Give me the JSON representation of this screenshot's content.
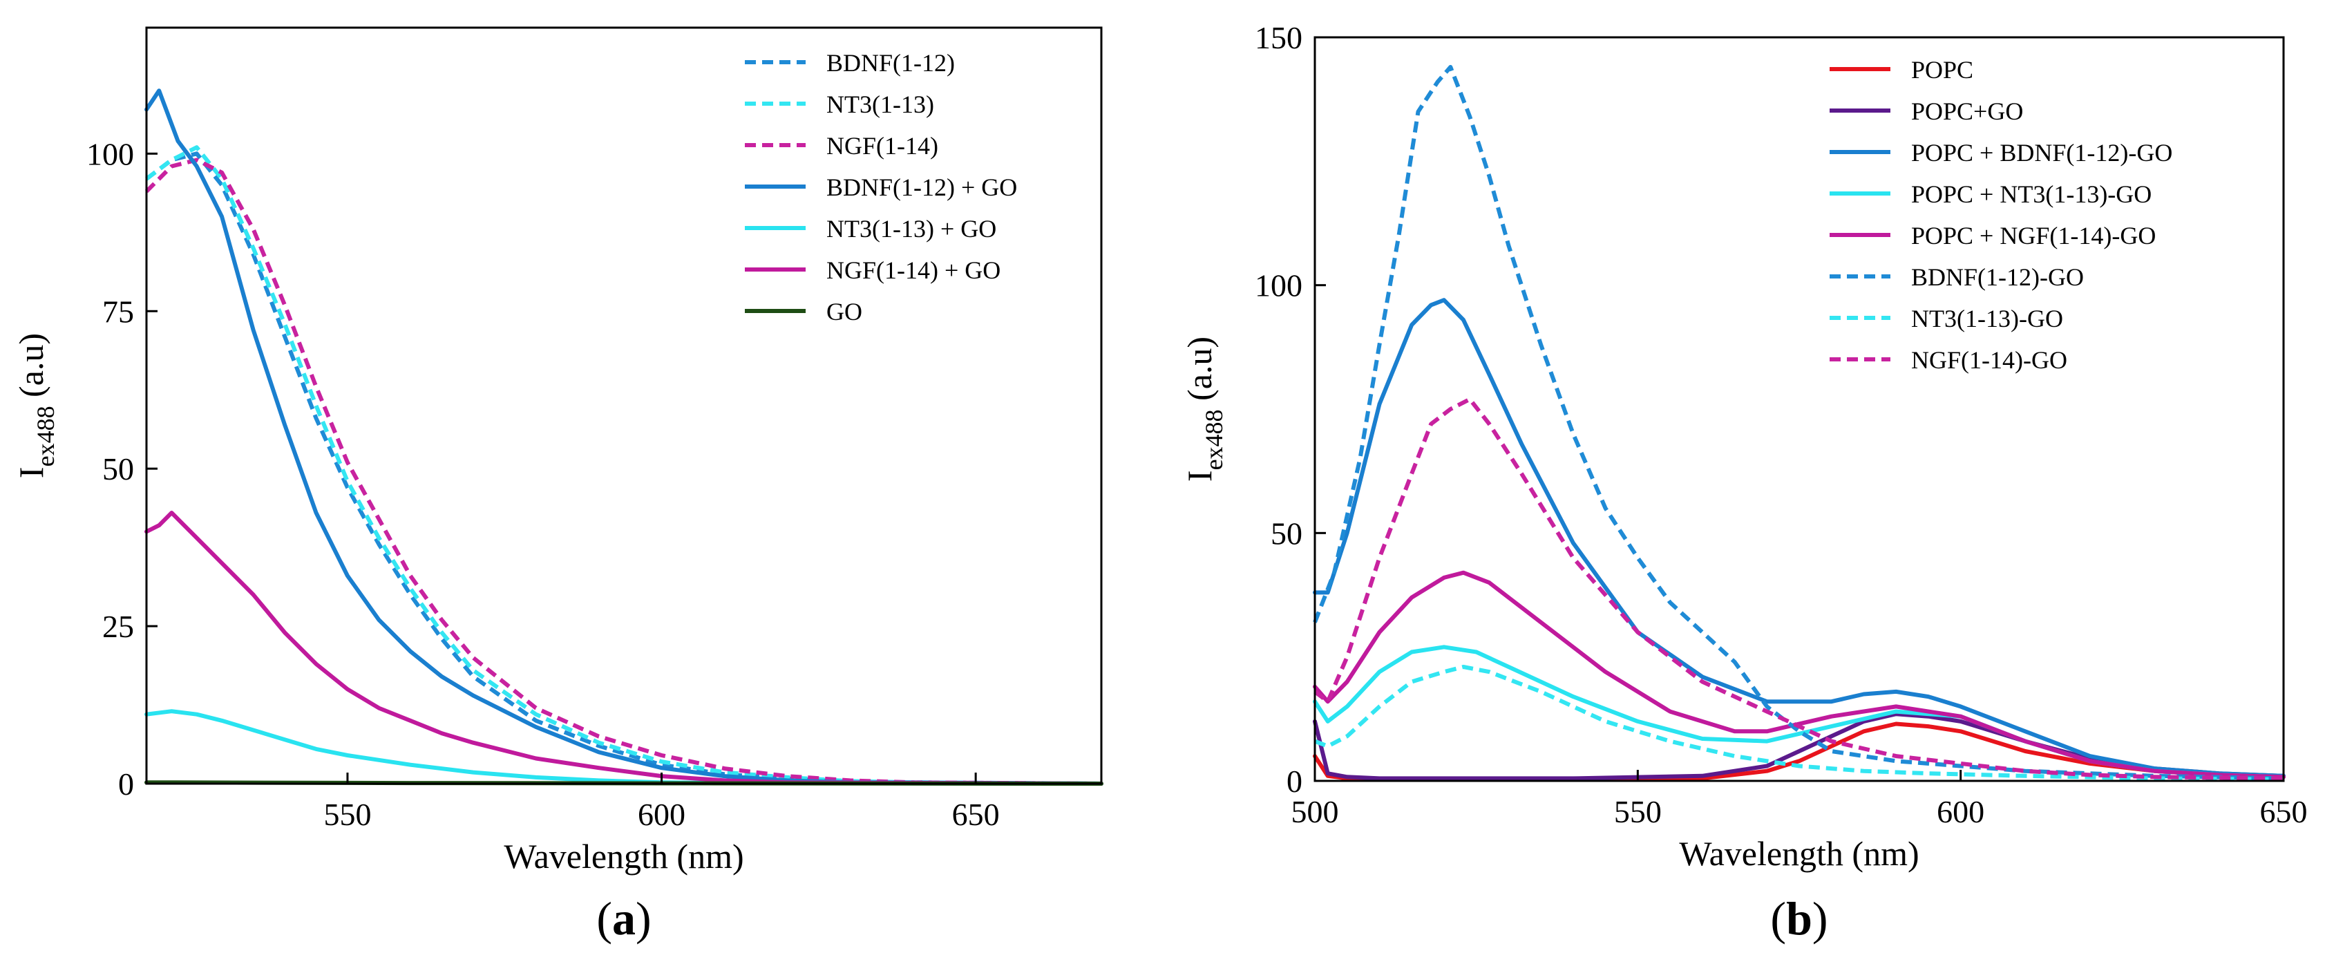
{
  "chart_data": [
    {
      "panel": "(a)",
      "panel_parts": [
        "(",
        "a",
        ")"
      ],
      "type": "line",
      "xlabel": "Wavelength (nm)",
      "ylabel": "I",
      "ylabel_sub": "ex488",
      "ylabel_unit": "(a.u)",
      "xlim": [
        518,
        670
      ],
      "ylim": [
        0,
        120
      ],
      "xticks": [
        550,
        600,
        650
      ],
      "yticks": [
        0,
        25,
        50,
        75,
        100
      ],
      "legend_position": "top-right",
      "series": [
        {
          "name": "BDNF(1-12)",
          "color": "#1f8bd6",
          "style": "dashed",
          "x": [
            518,
            522,
            526,
            530,
            535,
            540,
            545,
            550,
            555,
            560,
            565,
            570,
            580,
            590,
            600,
            610,
            620,
            630,
            640,
            670
          ],
          "y": [
            96,
            99,
            100,
            95,
            84,
            71,
            58,
            47,
            38,
            30,
            23,
            17,
            10,
            6,
            3,
            1.5,
            0.8,
            0.3,
            0.2,
            0
          ]
        },
        {
          "name": "NT3(1-13)",
          "color": "#33e6f2",
          "style": "dashed",
          "x": [
            518,
            522,
            526,
            530,
            535,
            540,
            545,
            550,
            555,
            560,
            565,
            570,
            580,
            590,
            600,
            610,
            620,
            630,
            640,
            670
          ],
          "y": [
            96,
            99,
            101,
            96,
            85,
            73,
            60,
            48,
            39,
            31,
            24,
            18,
            11,
            6.5,
            3.5,
            1.8,
            1,
            0.4,
            0.2,
            0
          ]
        },
        {
          "name": "NGF(1-14)",
          "color": "#c8229f",
          "style": "dashed",
          "x": [
            518,
            522,
            526,
            530,
            535,
            540,
            545,
            550,
            555,
            560,
            565,
            570,
            580,
            590,
            600,
            610,
            620,
            630,
            640,
            670
          ],
          "y": [
            94,
            98,
            99,
            97,
            88,
            76,
            63,
            51,
            42,
            33,
            26,
            20,
            12,
            7.5,
            4.5,
            2.4,
            1.2,
            0.5,
            0.2,
            0
          ]
        },
        {
          "name": "BDNF(1-12) + GO",
          "color": "#1a7fcf",
          "style": "solid",
          "x": [
            518,
            520,
            523,
            526,
            530,
            535,
            540,
            545,
            550,
            555,
            560,
            565,
            570,
            580,
            590,
            600,
            610,
            620,
            630,
            670
          ],
          "y": [
            107,
            110,
            102,
            98,
            90,
            72,
            57,
            43,
            33,
            26,
            21,
            17,
            14,
            9,
            5,
            2.5,
            1.2,
            0.5,
            0.2,
            0
          ]
        },
        {
          "name": "NT3(1-13) + GO",
          "color": "#29e3f0",
          "style": "solid",
          "x": [
            518,
            522,
            526,
            530,
            535,
            540,
            545,
            550,
            560,
            570,
            580,
            590,
            600,
            610,
            670
          ],
          "y": [
            11,
            11.5,
            11,
            10,
            8.5,
            7,
            5.5,
            4.5,
            3,
            1.8,
            1,
            0.5,
            0.2,
            0.1,
            0
          ]
        },
        {
          "name": "NGF(1-14) + GO",
          "color": "#c01a9c",
          "style": "solid",
          "x": [
            518,
            520,
            522,
            525,
            530,
            535,
            540,
            545,
            550,
            555,
            560,
            565,
            570,
            580,
            590,
            600,
            610,
            620,
            670
          ],
          "y": [
            40,
            41,
            43,
            40,
            35,
            30,
            24,
            19,
            15,
            12,
            10,
            8,
            6.5,
            4,
            2.5,
            1.2,
            0.5,
            0.2,
            0
          ]
        },
        {
          "name": "GO",
          "color": "#1e4d14",
          "style": "solid",
          "x": [
            518,
            560,
            600,
            670
          ],
          "y": [
            0.2,
            0.1,
            0.05,
            0
          ]
        }
      ]
    },
    {
      "panel": "(b)",
      "panel_parts": [
        "(",
        "b",
        ")"
      ],
      "type": "line",
      "xlabel": "Wavelength (nm)",
      "ylabel": "I",
      "ylabel_sub": "ex488",
      "ylabel_unit": "(a.u)",
      "xlim": [
        500,
        650
      ],
      "ylim": [
        0,
        150
      ],
      "xticks": [
        500,
        550,
        600,
        650
      ],
      "yticks": [
        0,
        50,
        100,
        150
      ],
      "legend_position": "top-right",
      "series": [
        {
          "name": "POPC",
          "color": "#e8141c",
          "style": "solid",
          "x": [
            500,
            502,
            505,
            510,
            520,
            540,
            560,
            570,
            575,
            580,
            585,
            590,
            595,
            600,
            605,
            610,
            620,
            630,
            640,
            650
          ],
          "y": [
            5,
            1,
            0.5,
            0.3,
            0.3,
            0.3,
            0.5,
            2,
            4,
            7,
            10,
            11.5,
            11,
            10,
            8,
            6,
            3.5,
            2,
            1.2,
            0.8
          ]
        },
        {
          "name": "POPC+GO",
          "color": "#5b1a8c",
          "style": "solid",
          "x": [
            500,
            502,
            505,
            510,
            520,
            540,
            560,
            570,
            575,
            580,
            585,
            590,
            595,
            600,
            605,
            610,
            620,
            630,
            640,
            650
          ],
          "y": [
            12,
            1.5,
            0.8,
            0.5,
            0.5,
            0.5,
            1,
            3,
            6,
            9,
            12,
            13.5,
            13,
            12,
            10,
            8,
            4.5,
            2.5,
            1.5,
            1
          ]
        },
        {
          "name": "POPC + BDNF(1-12)-GO",
          "color": "#1a7fcf",
          "style": "solid",
          "x": [
            500,
            502,
            505,
            510,
            515,
            518,
            520,
            523,
            527,
            532,
            540,
            550,
            560,
            570,
            580,
            585,
            590,
            595,
            600,
            610,
            620,
            630,
            640,
            650
          ],
          "y": [
            38,
            38,
            50,
            76,
            92,
            96,
            97,
            93,
            82,
            68,
            48,
            30,
            21,
            16,
            16,
            17.5,
            18,
            17,
            15,
            10,
            5,
            2.5,
            1.5,
            1
          ]
        },
        {
          "name": "POPC + NT3(1-13)-GO",
          "color": "#29e3f0",
          "style": "solid",
          "x": [
            500,
            502,
            505,
            510,
            515,
            520,
            525,
            530,
            540,
            550,
            560,
            570,
            580,
            590,
            600,
            610,
            620,
            630,
            640,
            650
          ],
          "y": [
            16,
            12,
            15,
            22,
            26,
            27,
            26,
            23,
            17,
            12,
            8.5,
            8,
            11,
            14,
            13,
            8,
            4,
            2,
            1.2,
            0.8
          ]
        },
        {
          "name": "POPC + NGF(1-14)-GO",
          "color": "#c01a9c",
          "style": "solid",
          "x": [
            500,
            502,
            505,
            510,
            515,
            520,
            523,
            527,
            535,
            545,
            555,
            565,
            570,
            580,
            590,
            600,
            610,
            620,
            630,
            640,
            650
          ],
          "y": [
            19,
            16,
            20,
            30,
            37,
            41,
            42,
            40,
            32,
            22,
            14,
            10,
            10,
            13,
            15,
            13,
            8,
            4,
            2,
            1.2,
            0.8
          ]
        },
        {
          "name": "BDNF(1-12)-GO",
          "color": "#1f8bd6",
          "style": "dashed",
          "x": [
            500,
            503,
            507,
            510,
            513,
            516,
            519,
            521,
            524,
            527,
            530,
            535,
            540,
            545,
            550,
            555,
            560,
            565,
            570,
            575,
            580,
            590,
            600,
            610,
            620,
            630,
            650
          ],
          "y": [
            32,
            42,
            65,
            88,
            110,
            135,
            141,
            144,
            134,
            122,
            108,
            88,
            70,
            55,
            45,
            36,
            30,
            24,
            15,
            10,
            6,
            4,
            3,
            2,
            1.5,
            1,
            0.5
          ]
        },
        {
          "name": "NT3(1-13)-GO",
          "color": "#33e6f2",
          "style": "dashed",
          "x": [
            500,
            502,
            505,
            510,
            515,
            520,
            523,
            527,
            535,
            545,
            555,
            565,
            575,
            585,
            595,
            610,
            630,
            650
          ],
          "y": [
            8,
            7,
            9,
            15,
            20,
            22,
            23,
            22,
            18,
            12,
            8,
            5,
            3,
            2,
            1.5,
            1,
            0.5,
            0.3
          ]
        },
        {
          "name": "NGF(1-14)-GO",
          "color": "#c8229f",
          "style": "dashed",
          "x": [
            500,
            502,
            505,
            510,
            515,
            518,
            521,
            524,
            527,
            532,
            540,
            550,
            560,
            570,
            580,
            590,
            600,
            610,
            620,
            630,
            650
          ],
          "y": [
            18,
            16,
            25,
            45,
            62,
            72,
            75,
            77,
            72,
            62,
            45,
            30,
            20,
            14,
            8,
            5,
            3.5,
            2,
            1.2,
            0.8,
            0.5
          ]
        }
      ]
    }
  ]
}
